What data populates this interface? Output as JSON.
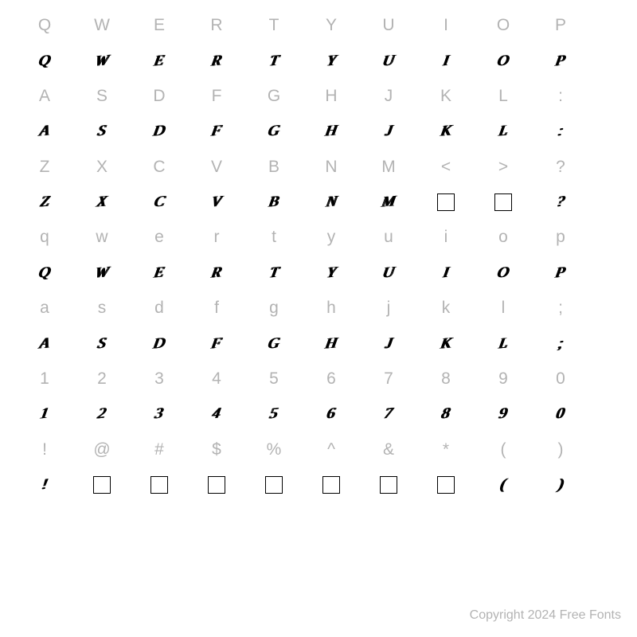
{
  "rows": [
    {
      "type": "label",
      "chars": [
        "Q",
        "W",
        "E",
        "R",
        "T",
        "Y",
        "U",
        "I",
        "O",
        "P"
      ]
    },
    {
      "type": "glyph",
      "chars": [
        "Q",
        "W",
        "E",
        "R",
        "T",
        "Y",
        "U",
        "I",
        "O",
        "P"
      ],
      "boxes": []
    },
    {
      "type": "label",
      "chars": [
        "A",
        "S",
        "D",
        "F",
        "G",
        "H",
        "J",
        "K",
        "L",
        ":"
      ]
    },
    {
      "type": "glyph",
      "chars": [
        "A",
        "S",
        "D",
        "F",
        "G",
        "H",
        "J",
        "K",
        "L",
        ":"
      ],
      "boxes": []
    },
    {
      "type": "label",
      "chars": [
        "Z",
        "X",
        "C",
        "V",
        "B",
        "N",
        "M",
        "<",
        ">",
        "?"
      ]
    },
    {
      "type": "glyph",
      "chars": [
        "Z",
        "X",
        "C",
        "V",
        "B",
        "N",
        "M",
        "",
        "",
        "?"
      ],
      "boxes": [
        7,
        8
      ]
    },
    {
      "type": "label",
      "chars": [
        "q",
        "w",
        "e",
        "r",
        "t",
        "y",
        "u",
        "i",
        "o",
        "p"
      ]
    },
    {
      "type": "glyph",
      "chars": [
        "Q",
        "W",
        "E",
        "R",
        "T",
        "Y",
        "U",
        "I",
        "O",
        "P"
      ],
      "boxes": []
    },
    {
      "type": "label",
      "chars": [
        "a",
        "s",
        "d",
        "f",
        "g",
        "h",
        "j",
        "k",
        "l",
        ";"
      ]
    },
    {
      "type": "glyph",
      "chars": [
        "A",
        "S",
        "D",
        "F",
        "G",
        "H",
        "J",
        "K",
        "L",
        ";"
      ],
      "boxes": []
    },
    {
      "type": "label",
      "chars": [
        "1",
        "2",
        "3",
        "4",
        "5",
        "6",
        "7",
        "8",
        "9",
        "0"
      ]
    },
    {
      "type": "glyph",
      "chars": [
        "1",
        "2",
        "3",
        "4",
        "5",
        "6",
        "7",
        "8",
        "9",
        "0"
      ],
      "boxes": []
    },
    {
      "type": "label",
      "chars": [
        "!",
        "@",
        "#",
        "$",
        "%",
        "^",
        "&",
        "*",
        "(",
        ")"
      ]
    },
    {
      "type": "glyph",
      "chars": [
        "!",
        "",
        "",
        "",
        "",
        "",
        "",
        "",
        "(",
        ")"
      ],
      "boxes": [
        1,
        2,
        3,
        4,
        5,
        6,
        7
      ]
    }
  ],
  "copyright": "Copyright 2024 Free Fonts",
  "colors": {
    "label": "#b3b3b3",
    "glyph": "#000000",
    "background": "#ffffff"
  },
  "grid": {
    "cols": 10,
    "rows": 16
  },
  "font_sizes": {
    "label": 21,
    "glyph": 19,
    "copyright": 16
  }
}
